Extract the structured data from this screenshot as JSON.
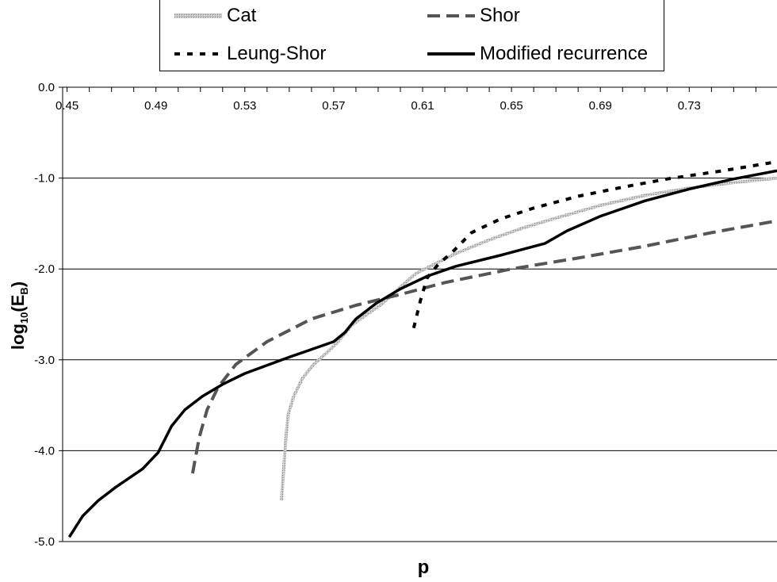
{
  "chart_data": {
    "type": "line",
    "xlabel": "p",
    "ylabel_main": "log",
    "ylabel_sub": "10",
    "ylabel_open": "(E",
    "ylabel_sub2": "B",
    "ylabel_close": ")",
    "xlim": [
      0.448,
      0.7695
    ],
    "ylim": [
      -5.0,
      0.0
    ],
    "xticks": [
      0.45,
      0.49,
      0.53,
      0.57,
      0.61,
      0.65,
      0.69,
      0.73
    ],
    "xtick_labels": [
      "0.45",
      "0.49",
      "0.53",
      "0.57",
      "0.61",
      "0.65",
      "0.69",
      "0.73"
    ],
    "yticks": [
      0.0,
      -1.0,
      -2.0,
      -3.0,
      -4.0,
      -5.0
    ],
    "ytick_labels": [
      "0.0",
      "-1.0",
      "-2.0",
      "-3.0",
      "-4.0",
      "-5.0"
    ],
    "grid": "horizontal",
    "legend_position": "top",
    "series": [
      {
        "name": "Cat",
        "color": "#b8b8b8",
        "style": "textured",
        "points": [
          [
            0.5465,
            -4.55
          ],
          [
            0.5475,
            -4.2
          ],
          [
            0.5485,
            -3.85
          ],
          [
            0.5495,
            -3.6
          ],
          [
            0.552,
            -3.4
          ],
          [
            0.556,
            -3.2
          ],
          [
            0.561,
            -3.05
          ],
          [
            0.567,
            -2.92
          ],
          [
            0.572,
            -2.8
          ],
          [
            0.578,
            -2.62
          ],
          [
            0.585,
            -2.5
          ],
          [
            0.592,
            -2.38
          ],
          [
            0.599,
            -2.22
          ],
          [
            0.607,
            -2.05
          ],
          [
            0.615,
            -1.95
          ],
          [
            0.625,
            -1.83
          ],
          [
            0.64,
            -1.68
          ],
          [
            0.655,
            -1.55
          ],
          [
            0.67,
            -1.44
          ],
          [
            0.69,
            -1.3
          ],
          [
            0.71,
            -1.19
          ],
          [
            0.73,
            -1.11
          ],
          [
            0.75,
            -1.05
          ],
          [
            0.7695,
            -1.0
          ]
        ]
      },
      {
        "name": "Shor",
        "color": "#555555",
        "style": "dashed",
        "points": [
          [
            0.5065,
            -4.25
          ],
          [
            0.5095,
            -3.85
          ],
          [
            0.513,
            -3.55
          ],
          [
            0.518,
            -3.3
          ],
          [
            0.526,
            -3.05
          ],
          [
            0.54,
            -2.8
          ],
          [
            0.56,
            -2.55
          ],
          [
            0.58,
            -2.4
          ],
          [
            0.6,
            -2.28
          ],
          [
            0.62,
            -2.15
          ],
          [
            0.65,
            -2.0
          ],
          [
            0.68,
            -1.88
          ],
          [
            0.71,
            -1.75
          ],
          [
            0.74,
            -1.6
          ],
          [
            0.7695,
            -1.47
          ]
        ]
      },
      {
        "name": "Leung-Shor",
        "color": "#000000",
        "style": "dotted",
        "points": [
          [
            0.606,
            -2.65
          ],
          [
            0.609,
            -2.35
          ],
          [
            0.612,
            -2.1
          ],
          [
            0.617,
            -1.95
          ],
          [
            0.624,
            -1.8
          ],
          [
            0.632,
            -1.6
          ],
          [
            0.645,
            -1.45
          ],
          [
            0.66,
            -1.33
          ],
          [
            0.68,
            -1.2
          ],
          [
            0.7,
            -1.1
          ],
          [
            0.72,
            -1.01
          ],
          [
            0.745,
            -0.92
          ],
          [
            0.7695,
            -0.82
          ]
        ]
      },
      {
        "name": "Modified recurrence",
        "color": "#000000",
        "style": "solid",
        "points": [
          [
            0.451,
            -4.95
          ],
          [
            0.457,
            -4.72
          ],
          [
            0.464,
            -4.55
          ],
          [
            0.472,
            -4.4
          ],
          [
            0.484,
            -4.2
          ],
          [
            0.491,
            -4.02
          ],
          [
            0.497,
            -3.73
          ],
          [
            0.503,
            -3.55
          ],
          [
            0.511,
            -3.4
          ],
          [
            0.52,
            -3.27
          ],
          [
            0.53,
            -3.15
          ],
          [
            0.55,
            -2.97
          ],
          [
            0.57,
            -2.8
          ],
          [
            0.575,
            -2.7
          ],
          [
            0.58,
            -2.55
          ],
          [
            0.589,
            -2.38
          ],
          [
            0.6,
            -2.22
          ],
          [
            0.612,
            -2.08
          ],
          [
            0.625,
            -1.97
          ],
          [
            0.645,
            -1.85
          ],
          [
            0.665,
            -1.72
          ],
          [
            0.675,
            -1.58
          ],
          [
            0.69,
            -1.42
          ],
          [
            0.71,
            -1.25
          ],
          [
            0.73,
            -1.12
          ],
          [
            0.75,
            -1.01
          ],
          [
            0.7695,
            -0.92
          ]
        ]
      }
    ]
  }
}
